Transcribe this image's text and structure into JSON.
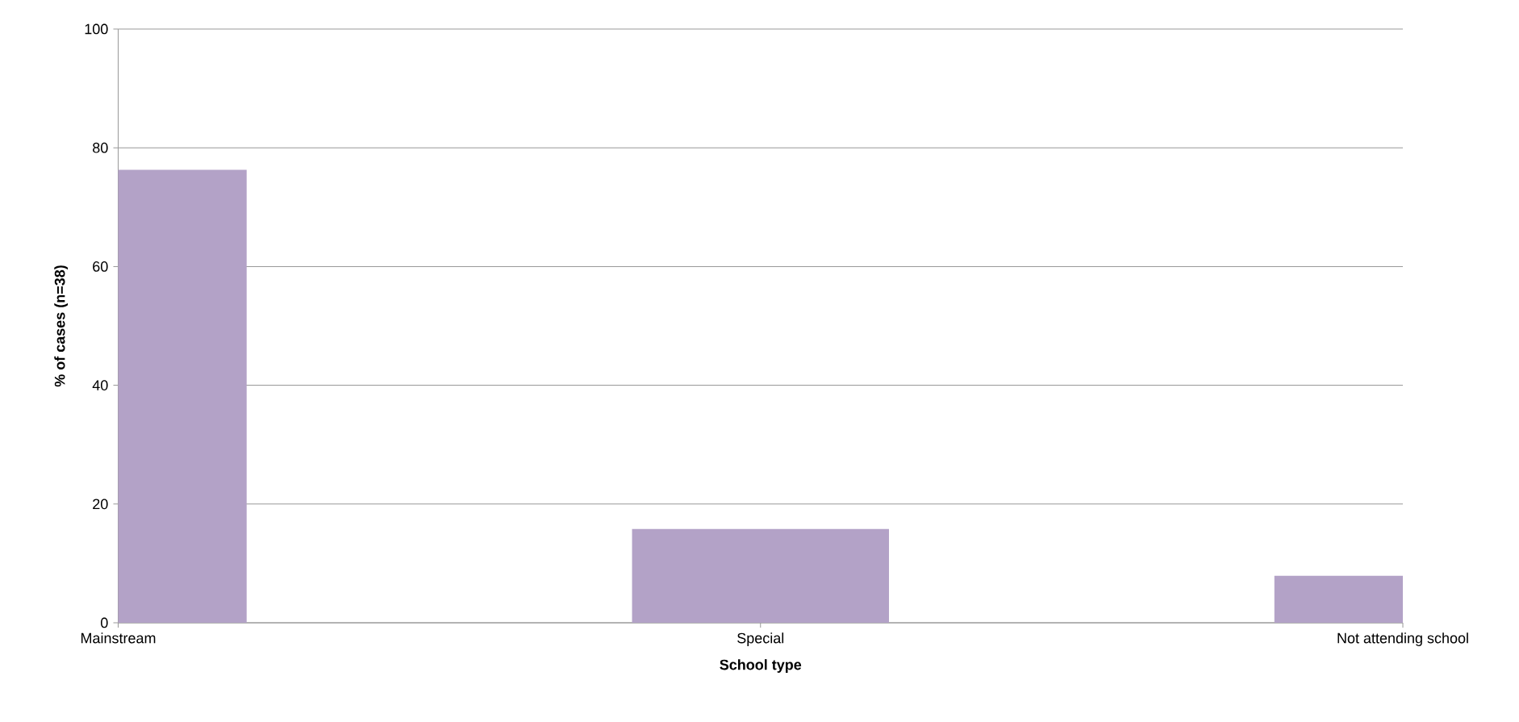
{
  "chart_data": {
    "type": "bar",
    "xlabel": "School type",
    "ylabel": "% of cases (n=38)",
    "categories": [
      "Mainstream",
      "Special",
      "Not attending school"
    ],
    "values": [
      76.3,
      15.8,
      7.9
    ],
    "color": "#b3a2c7",
    "ylim": [
      0,
      100
    ],
    "yticks": [
      0,
      20,
      40,
      60,
      80,
      100
    ],
    "grid": "y"
  }
}
